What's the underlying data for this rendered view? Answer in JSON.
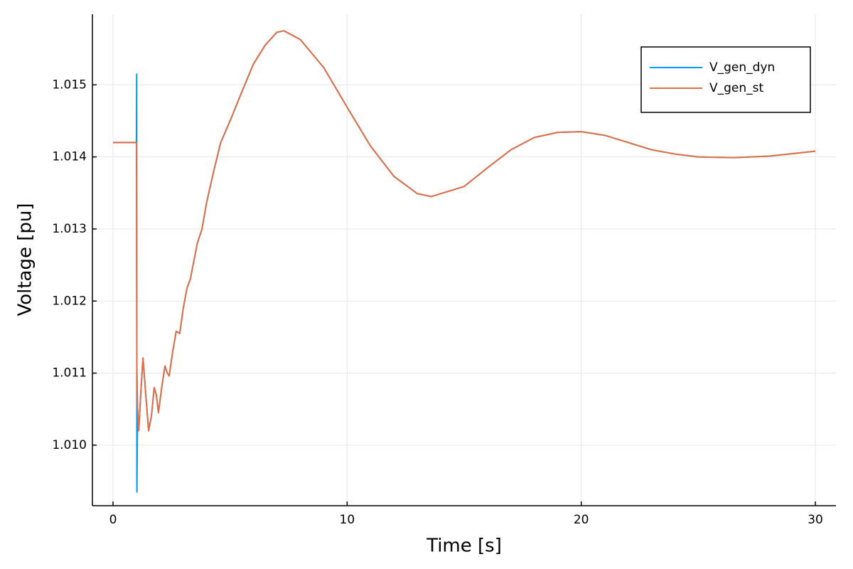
{
  "chart_data": {
    "type": "line",
    "x_label": "Time [s]",
    "y_label": "Voltage [pu]",
    "x": [
      0,
      0.5,
      1.0,
      1.01,
      1.02,
      1.05,
      1.1,
      1.2,
      1.28,
      1.4,
      1.52,
      1.64,
      1.76,
      1.85,
      1.94,
      2.08,
      2.22,
      2.32,
      2.4,
      2.55,
      2.7,
      2.85,
      3.0,
      3.16,
      3.3,
      3.6,
      3.8,
      4.0,
      4.3,
      4.6,
      5.0,
      5.5,
      6.0,
      6.5,
      7.0,
      7.3,
      8,
      9,
      10,
      11,
      12,
      13,
      13.6,
      15,
      16,
      17,
      18,
      19,
      20,
      21,
      22,
      23,
      24,
      25,
      26.5,
      28,
      30
    ],
    "series": [
      {
        "name": "V_gen_dyn",
        "color": "#009af9",
        "values": [
          1.0142,
          1.0142,
          1.0142,
          1.01515,
          1.00935,
          1.0105,
          1.0102,
          1.0108,
          1.01121,
          1.0107,
          1.0102,
          1.0104,
          1.0108,
          1.0107,
          1.01045,
          1.0108,
          1.0111,
          1.011,
          1.01096,
          1.0113,
          1.01158,
          1.01155,
          1.0119,
          1.01218,
          1.0123,
          1.0128,
          1.013,
          1.01337,
          1.0138,
          1.0142,
          1.0145,
          1.0149,
          1.01529,
          1.01555,
          1.01573,
          1.01575,
          1.01563,
          1.01524,
          1.01469,
          1.01415,
          1.01373,
          1.01349,
          1.01345,
          1.01359,
          1.01385,
          1.0141,
          1.01427,
          1.01434,
          1.01435,
          1.0143,
          1.0142,
          1.0141,
          1.01404,
          1.014,
          1.01399,
          1.01401,
          1.01408
        ]
      },
      {
        "name": "V_gen_st",
        "color": "#e26f46",
        "values": [
          1.0142,
          1.0142,
          1.0142,
          1.0123,
          1.0111,
          1.0105,
          1.0102,
          1.0108,
          1.01121,
          1.0107,
          1.0102,
          1.0104,
          1.0108,
          1.0107,
          1.01045,
          1.0108,
          1.0111,
          1.011,
          1.01096,
          1.0113,
          1.01158,
          1.01155,
          1.0119,
          1.01218,
          1.0123,
          1.0128,
          1.013,
          1.01337,
          1.0138,
          1.0142,
          1.0145,
          1.0149,
          1.01529,
          1.01555,
          1.01573,
          1.01575,
          1.01563,
          1.01524,
          1.01469,
          1.01415,
          1.01373,
          1.01349,
          1.01345,
          1.01359,
          1.01385,
          1.0141,
          1.01427,
          1.01434,
          1.01435,
          1.0143,
          1.0142,
          1.0141,
          1.01404,
          1.014,
          1.01399,
          1.01401,
          1.01408
        ]
      }
    ],
    "xlim": [
      -0.88,
      30.88
    ],
    "xticks": [
      0,
      10,
      20,
      30
    ],
    "ylim": [
      1.00916,
      1.01598
    ],
    "yticks": [
      {
        "value": 1.01,
        "label": "1.010"
      },
      1.011,
      1.012,
      1.013,
      1.014,
      1.015
    ],
    "grid": true,
    "legend": "top-right"
  }
}
